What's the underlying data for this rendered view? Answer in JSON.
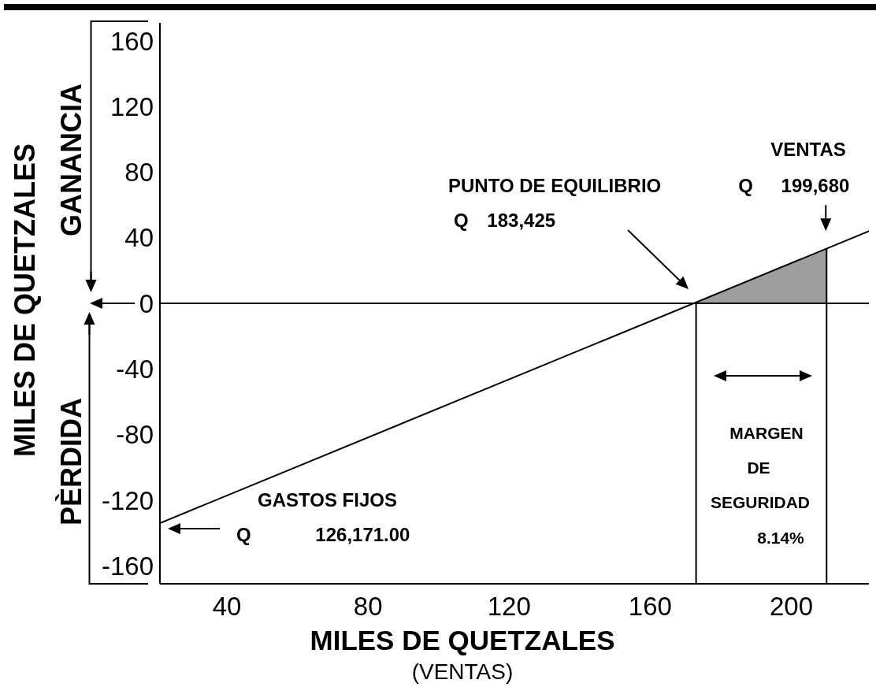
{
  "chart_data": {
    "type": "line",
    "xlabel": "MILES DE QUETZALES",
    "ylabel": "MILES DE QUETZALES",
    "annotations": [
      "PUNTO DE EQUILIBRIO\nQ 183,425",
      {
        "text": "VENTAS\nQ 199,680",
        "x": 210,
        "y": 33
      },
      "GASTOS FIJOS\nQ 126,171.00",
      "MARGEN\nDE\nSEGURIDAD\n8.14%",
      "GANANCIA",
      "PÈRDIDA",
      "(VENTAS)"
    ],
    "series": [
      {
        "type": "area",
        "x": [
          173,
          210
        ],
        "values": [
          0,
          33
        ],
        "color": "#9e9e9e"
      },
      {
        "x": [
          21,
          222
        ],
        "values": [
          -134,
          44
        ],
        "color": "#000000"
      },
      {
        "x": [
          173,
          173
        ],
        "values": [
          0,
          -171
        ],
        "color": "#000000"
      },
      {
        "x": [
          210,
          210
        ],
        "values": [
          33,
          -171
        ],
        "color": "#000000"
      }
    ],
    "xlim": [
      21,
      222
    ],
    "ylim": [
      -171,
      171
    ],
    "xticks": [
      40,
      80,
      120,
      160,
      200
    ],
    "yticks": [
      -160,
      -120,
      -80,
      -40,
      0,
      40,
      80,
      120,
      160
    ],
    "ref_lines": [
      {
        "axis": "y",
        "value": 0,
        "color": "#000000"
      }
    ],
    "marker": "none",
    "line_style": "solid"
  }
}
